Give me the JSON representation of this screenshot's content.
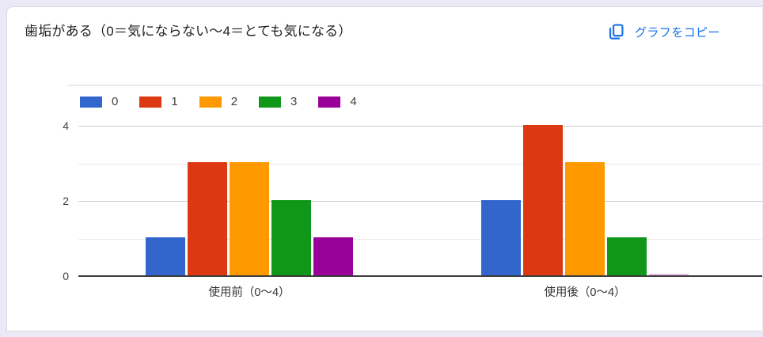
{
  "header": {
    "title": "歯垢がある（0＝気にならない～4＝とても気になる）",
    "copy_button": {
      "label": "グラフをコピー",
      "icon": "copy-icon",
      "color": "#1a73e8"
    }
  },
  "chart_data": {
    "type": "bar",
    "title": "歯垢がある（0＝気にならない～4＝とても気になる）",
    "categories": [
      "使用前（0～4）",
      "使用後（0～4）"
    ],
    "series": [
      {
        "name": "0",
        "color": "#3366CC",
        "values": [
          1,
          2
        ]
      },
      {
        "name": "1",
        "color": "#DC3912",
        "values": [
          3,
          4
        ]
      },
      {
        "name": "2",
        "color": "#FF9900",
        "values": [
          3,
          3
        ]
      },
      {
        "name": "3",
        "color": "#109618",
        "values": [
          2,
          1
        ]
      },
      {
        "name": "4",
        "color": "#990099",
        "values": [
          1,
          0
        ]
      }
    ],
    "ylim": [
      0,
      4
    ],
    "y_tick_labels": [
      "4",
      "2",
      "0"
    ],
    "grid": true,
    "legend_position": "top",
    "axis_color": "#3c3c3c",
    "major_gridline_color": "#cccccc",
    "minor_gridline_color": "#ebebeb"
  }
}
